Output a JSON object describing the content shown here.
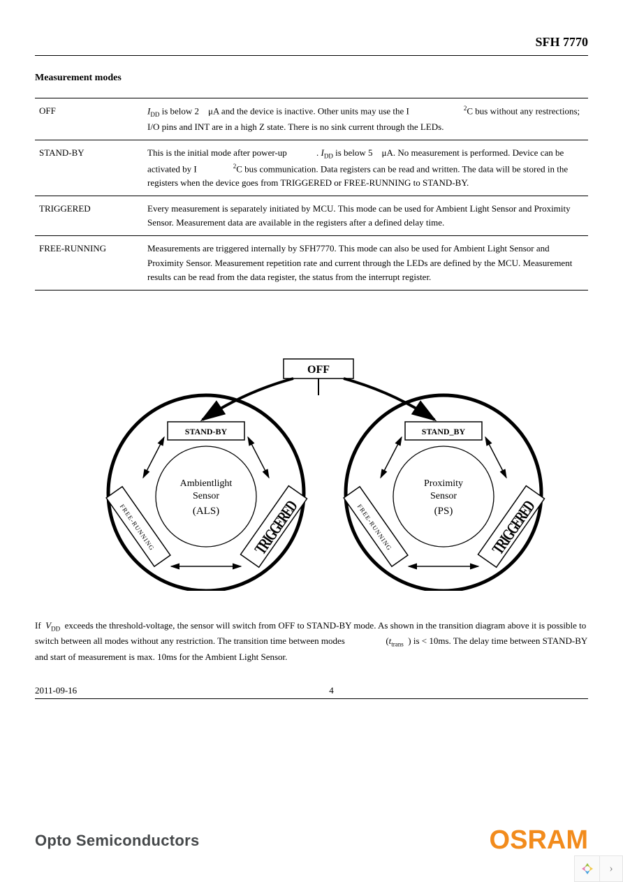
{
  "header": {
    "product": "SFH 7770"
  },
  "section_title": "Measurement modes",
  "table": {
    "rows": [
      {
        "name": "OFF",
        "desc_html": "<span class=\"italic\">I</span><span class=\"subscript\">DD</span> is below 2&nbsp;&nbsp;&nbsp;&nbsp;&mu;A and the device is inactive. Other units may use the I&nbsp;&nbsp;&nbsp;&nbsp;&nbsp;&nbsp;&nbsp;&nbsp;&nbsp;&nbsp;&nbsp;&nbsp;&nbsp;&nbsp;&nbsp;&nbsp;&nbsp;&nbsp;&nbsp;&nbsp;&nbsp;&nbsp;&nbsp;&nbsp;<span class=\"superscript\">2</span>C bus without any restrections; I/O pins and INT are in a high Z state. There is no sink current through the LEDs."
      },
      {
        "name": "STAND-BY",
        "desc_html": "This is the initial mode after power-up&nbsp;&nbsp;&nbsp;&nbsp;&nbsp;&nbsp;&nbsp;&nbsp;&nbsp;&nbsp;&nbsp;&nbsp;&nbsp;. <span class=\"italic\">I</span><span class=\"subscript\">DD</span> is below 5&nbsp;&nbsp;&nbsp;&nbsp;&mu;A. No measurement is performed. Device can be activated by I&nbsp;&nbsp;&nbsp;&nbsp;&nbsp;&nbsp;&nbsp;&nbsp;&nbsp;&nbsp;&nbsp;&nbsp;&nbsp;&nbsp;&nbsp;&nbsp;<span class=\"superscript\">2</span>C bus communication. Data registers can be read and written. The data will be stored in the registers when the device goes from TRIGGERED or FREE-RUNNING to STAND-BY."
      },
      {
        "name": "TRIGGERED",
        "desc_html": "Every measurement is separately initiated by MCU. This mode can be used for Ambient Light Sensor and Proximity Sensor. Measurement data are available in the registers after a defined delay time."
      },
      {
        "name": "FREE-RUNNING",
        "desc_html": "Measurements are triggered  internally by SFH7770. This mode can also be used for Ambient Light Sensor and Proximity Sensor. Measurement repetition rate and current through the LEDs are defined by the MCU. Measurement results can be read from the data register, the status from the interrupt register."
      }
    ]
  },
  "diagram": {
    "off_label": "OFF",
    "left": {
      "standby": "STAND-BY",
      "center_line1": "Ambientlight",
      "center_line2": "Sensor",
      "center_line3": "(ALS)",
      "free": "FREE-RUNNING",
      "trig": "TRIGGERED"
    },
    "right": {
      "standby": "STAND_BY",
      "center_line1": "Proximity",
      "center_line2": "Sensor",
      "center_line3": "(PS)",
      "free": "FREE-RUNNING",
      "trig": "TRIGGERED"
    },
    "colors": {
      "stroke": "#000000",
      "thick": 5,
      "thin": 1.5,
      "fill": "#ffffff"
    }
  },
  "body_html": "If&nbsp;&nbsp;<span class=\"italic\">V</span><span class=\"subscript\">DD</span>&nbsp; exceeds the threshold-voltage, the sensor will switch from OFF to STAND-BY mode. As shown in the transition diagram above it is possible to switch between all modes without any restriction. The transition time between modes&nbsp;&nbsp;&nbsp;&nbsp;&nbsp;&nbsp;&nbsp;&nbsp;&nbsp;&nbsp;&nbsp;&nbsp;&nbsp;&nbsp;&nbsp;&nbsp;&nbsp;&nbsp;(<span class=\"italic\">t</span><span class=\"subscript\">trans</span>&nbsp;&nbsp;) is &lt; 10ms. The delay time between STAND-BY and start of measurement is max. 10ms for the Ambient Light Sensor.",
  "footer": {
    "date": "2011-09-16",
    "page": "4"
  },
  "brand": {
    "left": "Opto Semiconductors",
    "right": "OSRAM"
  },
  "nav": {
    "chevron": "›"
  }
}
